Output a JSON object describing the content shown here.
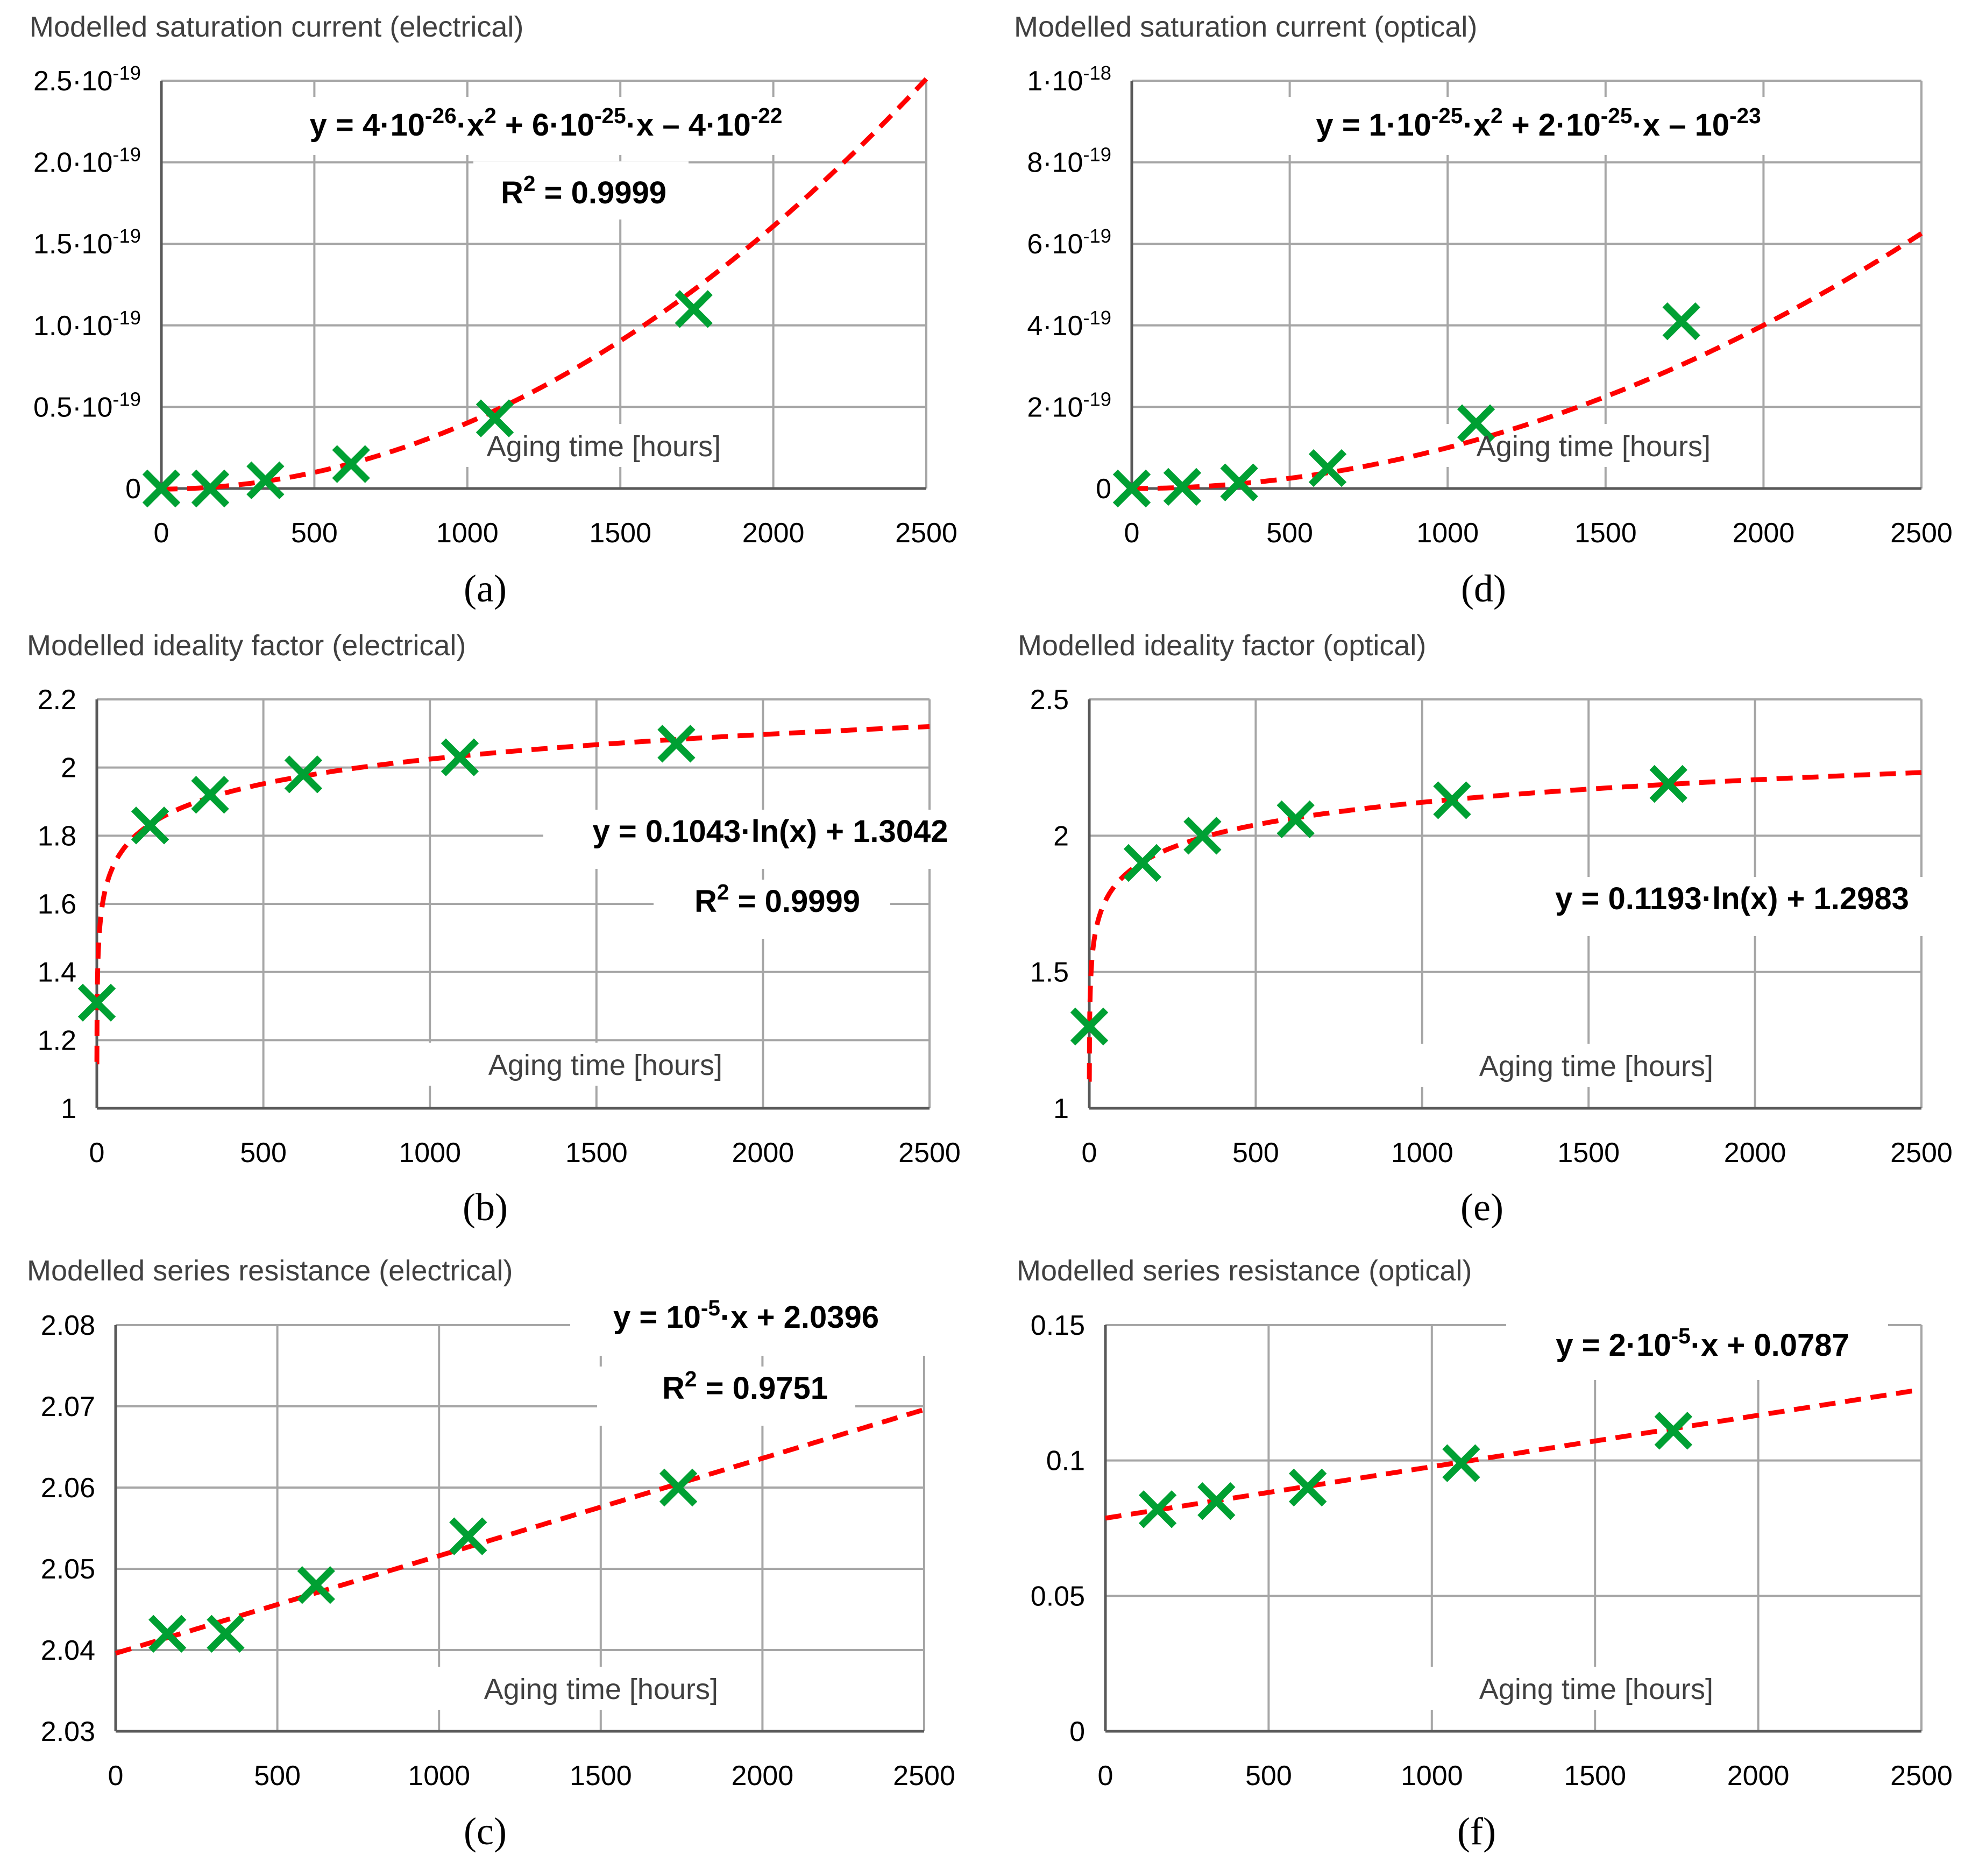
{
  "chart_data": [
    {
      "id": "a",
      "type": "scatter",
      "title": "Modelled saturation current (electrical)",
      "xlabel": "Aging time [hours]",
      "xlim": [
        0,
        2500
      ],
      "xticks": [
        "0",
        "500",
        "1000",
        "1500",
        "2000",
        "2500"
      ],
      "ylim": [
        0,
        2.5e-19
      ],
      "yticks": [
        {
          "m": "0",
          "e": ""
        },
        {
          "m": "0.5·10",
          "e": "-19"
        },
        {
          "m": "1.0·10",
          "e": "-19"
        },
        {
          "m": "1.5·10",
          "e": "-19"
        },
        {
          "m": "2.0·10",
          "e": "-19"
        },
        {
          "m": "2.5·10",
          "e": "-19"
        }
      ],
      "points": {
        "x": [
          0,
          160,
          340,
          620,
          1090,
          1740
        ],
        "y": [
          0,
          0,
          5e-21,
          1.5e-20,
          4.3e-20,
          1.1e-19
        ]
      },
      "fit": {
        "kind": "poly2",
        "a": 4e-26,
        "b": 6e-25,
        "c": -4e-22
      },
      "equation": {
        "pre": "y = 4·10",
        "s1": "-26",
        "m1": "·x",
        "s2": "2",
        "m2": " + 6·10",
        "s3": "-25",
        "post": "·x – 4·10",
        "s4": "-22"
      },
      "r2": {
        "pre": "R",
        "sup": "2",
        "post": " = 0.9999"
      },
      "panel_label": "(a)"
    },
    {
      "id": "d",
      "type": "scatter",
      "title": "Modelled saturation current (optical)",
      "xlabel": "Aging time [hours]",
      "xlim": [
        0,
        2500
      ],
      "xticks": [
        "0",
        "500",
        "1000",
        "1500",
        "2000",
        "2500"
      ],
      "ylim": [
        0,
        1e-18
      ],
      "yticks": [
        {
          "m": "0",
          "e": ""
        },
        {
          "m": "2·10",
          "e": "-19"
        },
        {
          "m": "4·10",
          "e": "-19"
        },
        {
          "m": "6·10",
          "e": "-19"
        },
        {
          "m": "8·10",
          "e": "-19"
        },
        {
          "m": "1·10",
          "e": "-18"
        }
      ],
      "points": {
        "x": [
          0,
          160,
          340,
          620,
          1090,
          1740
        ],
        "y": [
          0,
          4e-21,
          1.5e-20,
          5e-20,
          1.6e-19,
          4.1e-19
        ]
      },
      "fit": {
        "kind": "poly2",
        "a": 1e-25,
        "b": 2e-25,
        "c": -1e-23
      },
      "equation": {
        "pre": "y = 1·10",
        "s1": "-25",
        "m1": "·x",
        "s2": "2",
        "m2": " + 2·10",
        "s3": "-25",
        "post": "·x – 10",
        "s4": "-23"
      },
      "panel_label": "(d)"
    },
    {
      "id": "b",
      "type": "scatter",
      "title": "Modelled ideality factor (electrical)",
      "xlabel": "Aging time [hours]",
      "xlim": [
        0,
        2500
      ],
      "xticks": [
        "0",
        "500",
        "1000",
        "1500",
        "2000",
        "2500"
      ],
      "ylim": [
        1,
        2.2
      ],
      "yticks": [
        {
          "m": "1",
          "e": ""
        },
        {
          "m": "1.2",
          "e": ""
        },
        {
          "m": "1.4",
          "e": ""
        },
        {
          "m": "1.6",
          "e": ""
        },
        {
          "m": "1.8",
          "e": ""
        },
        {
          "m": "2",
          "e": ""
        },
        {
          "m": "2.2",
          "e": ""
        }
      ],
      "points": {
        "x": [
          0,
          160,
          340,
          620,
          1090,
          1740
        ],
        "y": [
          1.31,
          1.83,
          1.92,
          1.98,
          2.03,
          2.07
        ]
      },
      "fit": {
        "kind": "log",
        "a": 0.1043,
        "b": 1.3042
      },
      "equation": {
        "pre": "y = 0.1043·ln(x) + 1.3042"
      },
      "r2": {
        "pre": "R",
        "sup": "2",
        "post": " = 0.9999"
      },
      "panel_label": "(b)"
    },
    {
      "id": "e",
      "type": "scatter",
      "title": "Modelled ideality factor (optical)",
      "xlabel": "Aging time [hours]",
      "xlim": [
        0,
        2500
      ],
      "xticks": [
        "0",
        "500",
        "1000",
        "1500",
        "2000",
        "2500"
      ],
      "ylim": [
        1,
        2.5
      ],
      "yticks": [
        {
          "m": "1",
          "e": ""
        },
        {
          "m": "1.5",
          "e": ""
        },
        {
          "m": "2",
          "e": ""
        },
        {
          "m": "2.5",
          "e": ""
        }
      ],
      "points": {
        "x": [
          0,
          160,
          340,
          620,
          1090,
          1740
        ],
        "y": [
          1.3,
          1.9,
          2.0,
          2.06,
          2.13,
          2.19
        ]
      },
      "fit": {
        "kind": "log",
        "a": 0.1193,
        "b": 1.2983
      },
      "equation": {
        "pre": "y = 0.1193·ln(x) + 1.2983"
      },
      "panel_label": "(e)"
    },
    {
      "id": "c",
      "type": "scatter",
      "title": "Modelled series resistance (electrical)",
      "xlabel": "Aging time [hours]",
      "xlim": [
        0,
        2500
      ],
      "xticks": [
        "0",
        "500",
        "1000",
        "1500",
        "2000",
        "2500"
      ],
      "ylim": [
        2.03,
        2.08
      ],
      "yticks": [
        {
          "m": "2.03",
          "e": ""
        },
        {
          "m": "2.04",
          "e": ""
        },
        {
          "m": "2.05",
          "e": ""
        },
        {
          "m": "2.06",
          "e": ""
        },
        {
          "m": "2.07",
          "e": ""
        },
        {
          "m": "2.08",
          "e": ""
        }
      ],
      "points": {
        "x": [
          160,
          340,
          620,
          1090,
          1740
        ],
        "y": [
          2.042,
          2.042,
          2.048,
          2.054,
          2.06
        ]
      },
      "fit": {
        "kind": "lin",
        "m": 1.2e-05,
        "b": 2.0396
      },
      "equation": {
        "pre": "y = 10",
        "s1": "-5",
        "post": "·x + 2.0396"
      },
      "r2": {
        "pre": "R",
        "sup": "2",
        "post": " = 0.9751"
      },
      "panel_label": "(c)"
    },
    {
      "id": "f",
      "type": "scatter",
      "title": "Modelled series resistance (optical)",
      "xlabel": "Aging time [hours]",
      "xlim": [
        0,
        2500
      ],
      "xticks": [
        "0",
        "500",
        "1000",
        "1500",
        "2000",
        "2500"
      ],
      "ylim": [
        0,
        0.15
      ],
      "yticks": [
        {
          "m": "0",
          "e": ""
        },
        {
          "m": "0.05",
          "e": ""
        },
        {
          "m": "0.1",
          "e": ""
        },
        {
          "m": "0.15",
          "e": ""
        }
      ],
      "points": {
        "x": [
          160,
          340,
          620,
          1090,
          1740
        ],
        "y": [
          0.082,
          0.085,
          0.09,
          0.099,
          0.111
        ]
      },
      "fit": {
        "kind": "lin",
        "m": 1.9e-05,
        "b": 0.0787
      },
      "equation": {
        "pre": "y = 2·10",
        "s1": "-5",
        "post": "·x + 0.0787"
      },
      "panel_label": "(f)"
    }
  ],
  "colors": {
    "fit_line": "#ff0000",
    "marker": "#00a033",
    "grid": "#a6a6a6",
    "axis": "#595959"
  }
}
